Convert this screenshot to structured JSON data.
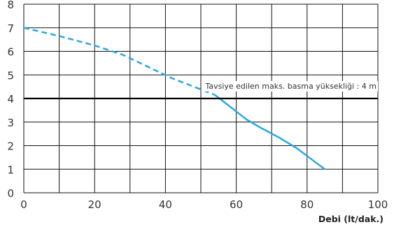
{
  "chart_data": {
    "type": "line",
    "title": "",
    "xlabel": "Debi (lt/dak.)",
    "ylabel": "",
    "xlim": [
      0,
      100
    ],
    "ylim": [
      0,
      8
    ],
    "x_ticks": [
      "0",
      "20",
      "40",
      "60",
      "80",
      "100"
    ],
    "y_ticks": [
      "0",
      "1",
      "2",
      "3",
      "4",
      "5",
      "6",
      "7",
      "8"
    ],
    "grid": true,
    "series": [
      {
        "color": "#2aa8e0",
        "style": "dashed",
        "x": [
          0,
          10,
          20,
          28,
          35,
          42,
          48,
          54
        ],
        "y": [
          7.0,
          6.65,
          6.25,
          5.85,
          5.35,
          4.85,
          4.5,
          4.15
        ]
      },
      {
        "color": "#2aa8e0",
        "style": "solid",
        "x": [
          54,
          57,
          60,
          63,
          67,
          72,
          77,
          81,
          85
        ],
        "y": [
          4.15,
          3.8,
          3.45,
          3.1,
          2.75,
          2.35,
          1.9,
          1.45,
          1.0
        ]
      }
    ],
    "reference_line": {
      "y": 4,
      "color": "#000000",
      "label": "Tavsiye edilen maks. basma yüksekliği : 4 m"
    }
  }
}
